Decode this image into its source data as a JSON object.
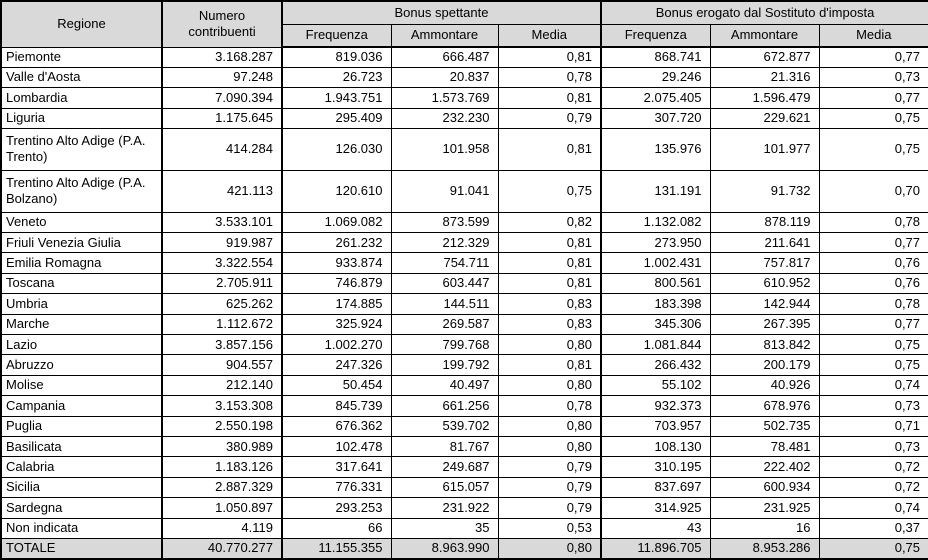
{
  "table": {
    "header": {
      "regione": "Regione",
      "numero_contribuenti": "Numero contribuenti",
      "group1": "Bonus spettante",
      "group2": "Bonus erogato dal Sostituto d'imposta",
      "sub": [
        "Frequenza",
        "Ammontare",
        "Media"
      ]
    },
    "rows": [
      {
        "regione": "Piemonte",
        "values": [
          "3.168.287",
          "819.036",
          "666.487",
          "0,81",
          "868.741",
          "672.877",
          "0,77"
        ]
      },
      {
        "regione": "Valle d'Aosta",
        "values": [
          "97.248",
          "26.723",
          "20.837",
          "0,78",
          "29.246",
          "21.316",
          "0,73"
        ]
      },
      {
        "regione": "Lombardia",
        "values": [
          "7.090.394",
          "1.943.751",
          "1.573.769",
          "0,81",
          "2.075.405",
          "1.596.479",
          "0,77"
        ]
      },
      {
        "regione": "Liguria",
        "values": [
          "1.175.645",
          "295.409",
          "232.230",
          "0,79",
          "307.720",
          "229.621",
          "0,75"
        ]
      },
      {
        "regione": "Trentino Alto Adige (P.A. Trento)",
        "tall": true,
        "values": [
          "414.284",
          "126.030",
          "101.958",
          "0,81",
          "135.976",
          "101.977",
          "0,75"
        ]
      },
      {
        "regione": "Trentino Alto Adige (P.A. Bolzano)",
        "tall": true,
        "values": [
          "421.113",
          "120.610",
          "91.041",
          "0,75",
          "131.191",
          "91.732",
          "0,70"
        ]
      },
      {
        "regione": "Veneto",
        "values": [
          "3.533.101",
          "1.069.082",
          "873.599",
          "0,82",
          "1.132.082",
          "878.119",
          "0,78"
        ]
      },
      {
        "regione": "Friuli Venezia Giulia",
        "values": [
          "919.987",
          "261.232",
          "212.329",
          "0,81",
          "273.950",
          "211.641",
          "0,77"
        ]
      },
      {
        "regione": "Emilia Romagna",
        "values": [
          "3.322.554",
          "933.874",
          "754.711",
          "0,81",
          "1.002.431",
          "757.817",
          "0,76"
        ]
      },
      {
        "regione": "Toscana",
        "values": [
          "2.705.911",
          "746.879",
          "603.447",
          "0,81",
          "800.561",
          "610.952",
          "0,76"
        ]
      },
      {
        "regione": "Umbria",
        "values": [
          "625.262",
          "174.885",
          "144.511",
          "0,83",
          "183.398",
          "142.944",
          "0,78"
        ]
      },
      {
        "regione": "Marche",
        "values": [
          "1.112.672",
          "325.924",
          "269.587",
          "0,83",
          "345.306",
          "267.395",
          "0,77"
        ]
      },
      {
        "regione": "Lazio",
        "values": [
          "3.857.156",
          "1.002.270",
          "799.768",
          "0,80",
          "1.081.844",
          "813.842",
          "0,75"
        ]
      },
      {
        "regione": "Abruzzo",
        "values": [
          "904.557",
          "247.326",
          "199.792",
          "0,81",
          "266.432",
          "200.179",
          "0,75"
        ]
      },
      {
        "regione": "Molise",
        "values": [
          "212.140",
          "50.454",
          "40.497",
          "0,80",
          "55.102",
          "40.926",
          "0,74"
        ]
      },
      {
        "regione": "Campania",
        "values": [
          "3.153.308",
          "845.739",
          "661.256",
          "0,78",
          "932.373",
          "678.976",
          "0,73"
        ]
      },
      {
        "regione": "Puglia",
        "values": [
          "2.550.198",
          "676.362",
          "539.702",
          "0,80",
          "703.957",
          "502.735",
          "0,71"
        ]
      },
      {
        "regione": "Basilicata",
        "values": [
          "380.989",
          "102.478",
          "81.767",
          "0,80",
          "108.130",
          "78.481",
          "0,73"
        ]
      },
      {
        "regione": "Calabria",
        "values": [
          "1.183.126",
          "317.641",
          "249.687",
          "0,79",
          "310.195",
          "222.402",
          "0,72"
        ]
      },
      {
        "regione": "Sicilia",
        "values": [
          "2.887.329",
          "776.331",
          "615.057",
          "0,79",
          "837.697",
          "600.934",
          "0,72"
        ]
      },
      {
        "regione": "Sardegna",
        "values": [
          "1.050.897",
          "293.253",
          "231.922",
          "0,79",
          "314.925",
          "231.925",
          "0,74"
        ]
      },
      {
        "regione": "Non indicata",
        "values": [
          "4.119",
          "66",
          "35",
          "0,53",
          "43",
          "16",
          "0,37"
        ]
      },
      {
        "regione": "TOTALE",
        "total": true,
        "values": [
          "40.770.277",
          "11.155.355",
          "8.963.990",
          "0,80",
          "11.896.705",
          "8.953.286",
          "0,75"
        ]
      }
    ]
  },
  "colors": {
    "header_bg": "#d9d9d9",
    "total_bg": "#d9d9d9",
    "border": "#000000",
    "body_bg": "#ffffff"
  }
}
